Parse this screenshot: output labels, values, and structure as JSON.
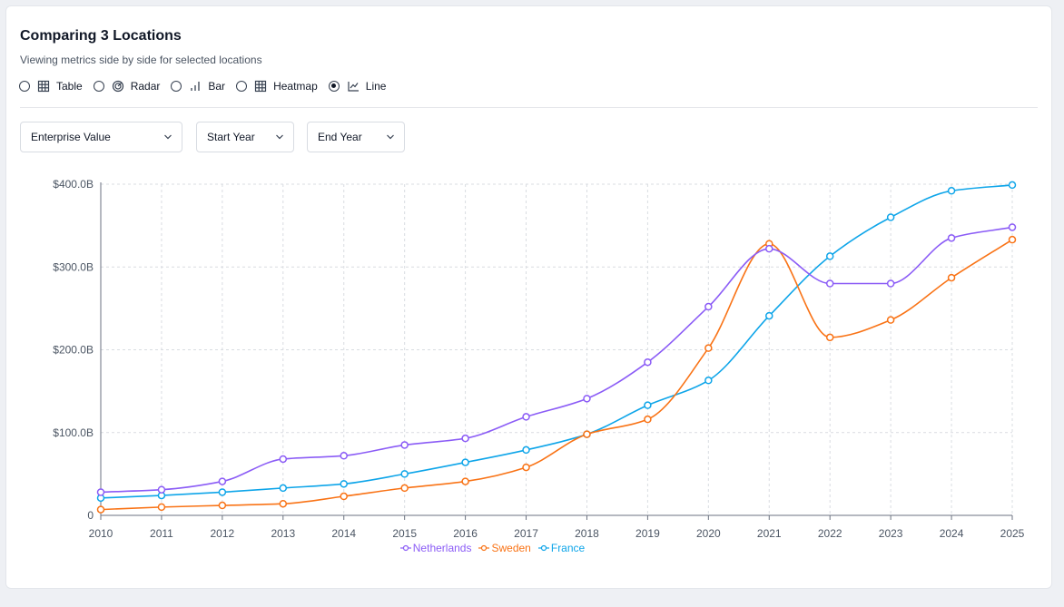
{
  "header": {
    "title": "Comparing 3 Locations",
    "subtitle": "Viewing metrics side by side for selected locations"
  },
  "views": [
    {
      "label": "Table",
      "icon": "table-icon",
      "checked": false
    },
    {
      "label": "Radar",
      "icon": "radar-icon",
      "checked": false
    },
    {
      "label": "Bar",
      "icon": "bar-chart-icon",
      "checked": false
    },
    {
      "label": "Heatmap",
      "icon": "heatmap-icon",
      "checked": false
    },
    {
      "label": "Line",
      "icon": "line-chart-icon",
      "checked": true
    }
  ],
  "filters": {
    "metric": "Enterprise Value",
    "start_year": "Start Year",
    "end_year": "End Year"
  },
  "colors": {
    "Netherlands": "#8b5cf6",
    "Sweden": "#f97316",
    "France": "#0ea5e9",
    "grid": "#d9dce1",
    "axis_text": "#4b5563"
  },
  "chart_data": {
    "type": "line",
    "x": [
      "2010",
      "2011",
      "2012",
      "2013",
      "2014",
      "2015",
      "2016",
      "2017",
      "2018",
      "2019",
      "2020",
      "2021",
      "2022",
      "2023",
      "2024",
      "2025"
    ],
    "ylim": [
      0,
      400
    ],
    "yticks": [
      0,
      100,
      200,
      300,
      400
    ],
    "ytick_labels": [
      "0",
      "$100.0B",
      "$200.0B",
      "$300.0B",
      "$400.0B"
    ],
    "grid": true,
    "legend_position": "bottom",
    "series": [
      {
        "name": "Netherlands",
        "values": [
          28,
          31,
          41,
          68,
          72,
          85,
          93,
          119,
          141,
          185,
          252,
          322,
          280,
          280,
          335,
          348
        ]
      },
      {
        "name": "Sweden",
        "values": [
          7,
          10,
          12,
          14,
          23,
          33,
          41,
          58,
          98,
          116,
          202,
          328,
          215,
          236,
          287,
          333
        ]
      },
      {
        "name": "France",
        "values": [
          21,
          24,
          28,
          33,
          38,
          50,
          64,
          79,
          98,
          133,
          163,
          241,
          313,
          360,
          392,
          399
        ]
      }
    ]
  }
}
